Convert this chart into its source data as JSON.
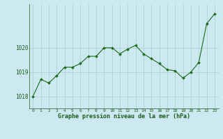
{
  "hours": [
    0,
    1,
    2,
    3,
    4,
    5,
    6,
    7,
    8,
    9,
    10,
    11,
    12,
    13,
    14,
    15,
    16,
    17,
    18,
    19,
    20,
    21,
    22,
    23
  ],
  "pressure": [
    1018.0,
    1018.7,
    1018.55,
    1018.85,
    1019.2,
    1019.2,
    1019.35,
    1019.65,
    1019.65,
    1020.0,
    1020.0,
    1019.75,
    1019.95,
    1020.1,
    1019.75,
    1019.55,
    1019.35,
    1019.1,
    1019.05,
    1018.75,
    1019.0,
    1019.4,
    1021.0,
    1021.4
  ],
  "line_color": "#1a6b1a",
  "marker_color": "#1a6b1a",
  "bg_color": "#cce8f0",
  "grid_color": "#aacccc",
  "xlabel": "Graphe pression niveau de la mer (hPa)",
  "xlabel_color": "#1a5c1a",
  "tick_color": "#1a5c1a",
  "ylim": [
    1017.5,
    1021.8
  ],
  "yticks": [
    1018,
    1019,
    1020
  ],
  "xlim": [
    -0.5,
    23.5
  ],
  "figwidth": 3.2,
  "figheight": 2.0,
  "dpi": 100
}
